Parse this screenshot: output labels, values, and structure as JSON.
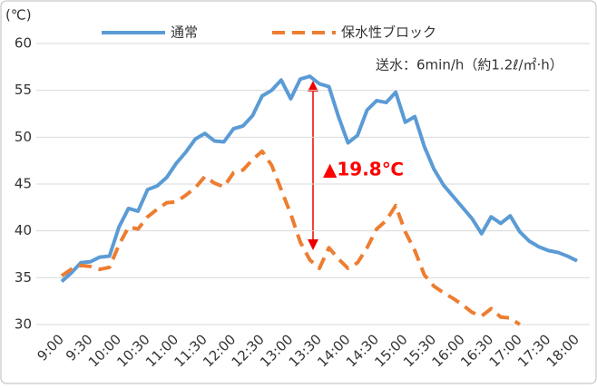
{
  "chart_data": {
    "type": "line",
    "y_axis_label": "(℃)",
    "annotations": [
      "送水：6min/h（約1.2ℓ/㎡·h）",
      "▲19.8℃"
    ],
    "categories": [
      "9:00",
      null,
      null,
      "9:30",
      null,
      null,
      "10:00",
      null,
      null,
      "10:30",
      null,
      null,
      "11:00",
      null,
      null,
      "11:30",
      null,
      null,
      "12:00",
      null,
      null,
      "12:30",
      null,
      null,
      "13:00",
      null,
      null,
      "13:30",
      null,
      null,
      "14:00",
      null,
      null,
      "14:30",
      null,
      null,
      "15:00",
      null,
      null,
      "15:30",
      null,
      null,
      "16:00",
      null,
      null,
      "16:30",
      null,
      null,
      "17:00",
      null,
      null,
      "17:30",
      null,
      null,
      "18:00"
    ],
    "series": [
      {
        "name": "通常",
        "color": "#5b9bd5",
        "dash": false,
        "values": [
          34.6,
          35.5,
          36.6,
          36.7,
          37.2,
          37.3,
          40.4,
          42.4,
          42.1,
          44.4,
          44.8,
          45.7,
          47.2,
          48.4,
          49.8,
          50.4,
          49.6,
          49.5,
          50.9,
          51.2,
          52.3,
          54.4,
          55.0,
          56.1,
          54.1,
          56.2,
          56.5,
          55.7,
          55.4,
          52.2,
          49.4,
          50.2,
          52.9,
          53.9,
          53.7,
          54.8,
          51.6,
          52.2,
          49.0,
          46.6,
          44.9,
          43.7,
          42.5,
          41.3,
          39.7,
          41.5,
          40.8,
          41.6,
          39.9,
          38.9,
          38.3,
          37.9,
          37.7,
          37.3,
          36.8
        ]
      },
      {
        "name": "保水性ブロック",
        "color": "#ed7d31",
        "dash": true,
        "values": [
          35.2,
          35.9,
          36.3,
          36.2,
          35.9,
          36.1,
          38.5,
          40.4,
          40.2,
          41.5,
          42.3,
          43.0,
          43.1,
          43.8,
          44.6,
          45.8,
          45.1,
          44.7,
          46.2,
          46.5,
          47.6,
          48.5,
          47.0,
          44.4,
          41.8,
          38.8,
          36.9,
          36.0,
          38.2,
          37.0,
          36.0,
          36.6,
          38.2,
          40.2,
          41.1,
          42.7,
          39.9,
          37.9,
          35.3,
          34.1,
          33.4,
          32.8,
          32.1,
          31.3,
          30.9,
          31.7,
          30.8,
          30.7,
          30.0,
          null,
          null,
          null,
          null,
          null,
          null
        ]
      }
    ],
    "ylim": [
      30,
      60
    ],
    "yticks": [
      30,
      35,
      40,
      45,
      50,
      55,
      60
    ],
    "grid": true
  }
}
